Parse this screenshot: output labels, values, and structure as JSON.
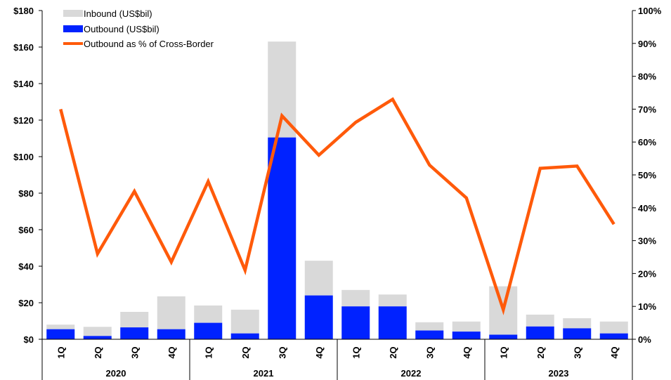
{
  "chart_data": {
    "type": "bar",
    "categories": [
      "1Q",
      "2Q",
      "3Q",
      "4Q",
      "1Q",
      "2Q",
      "3Q",
      "4Q",
      "1Q",
      "2Q",
      "3Q",
      "4Q",
      "1Q",
      "2Q",
      "3Q",
      "4Q"
    ],
    "years": [
      "2020",
      "2021",
      "2022",
      "2023"
    ],
    "series": [
      {
        "name": "Inbound (US$bil)",
        "kind": "stacked-bar",
        "color": "#d9d9d9",
        "values": [
          2.5,
          5,
          8.5,
          18,
          9.5,
          13,
          52.5,
          19,
          9,
          6.5,
          4.5,
          5.5,
          26.5,
          6.5,
          5.5,
          6.5
        ]
      },
      {
        "name": "Outbound (US$bil)",
        "kind": "stacked-bar",
        "color": "#0022ff",
        "values": [
          5.5,
          1.8,
          6.5,
          5.5,
          9,
          3.2,
          110.5,
          24,
          18,
          18,
          4.8,
          4.2,
          2.5,
          7,
          6,
          3.2
        ]
      },
      {
        "name": "Outbound as % of Cross-Border",
        "kind": "line",
        "axis": "right",
        "color": "#ff5a0a",
        "values": [
          70,
          26,
          45,
          23.5,
          48,
          21,
          68,
          56,
          66,
          73,
          53,
          43,
          9,
          52,
          52.7,
          35
        ]
      }
    ],
    "left_axis": {
      "ylim": [
        0,
        180
      ],
      "ticks": [
        0,
        20,
        40,
        60,
        80,
        100,
        120,
        140,
        160,
        180
      ],
      "tick_labels": [
        "$0",
        "$20",
        "$40",
        "$60",
        "$80",
        "$100",
        "$120",
        "$140",
        "$160",
        "$180"
      ]
    },
    "right_axis": {
      "ylim": [
        0,
        100
      ],
      "ticks": [
        0,
        10,
        20,
        30,
        40,
        50,
        60,
        70,
        80,
        90,
        100
      ],
      "tick_labels": [
        "0%",
        "10%",
        "20%",
        "30%",
        "40%",
        "50%",
        "60%",
        "70%",
        "80%",
        "90%",
        "100%"
      ]
    },
    "legend": "top-left",
    "grid": false
  }
}
